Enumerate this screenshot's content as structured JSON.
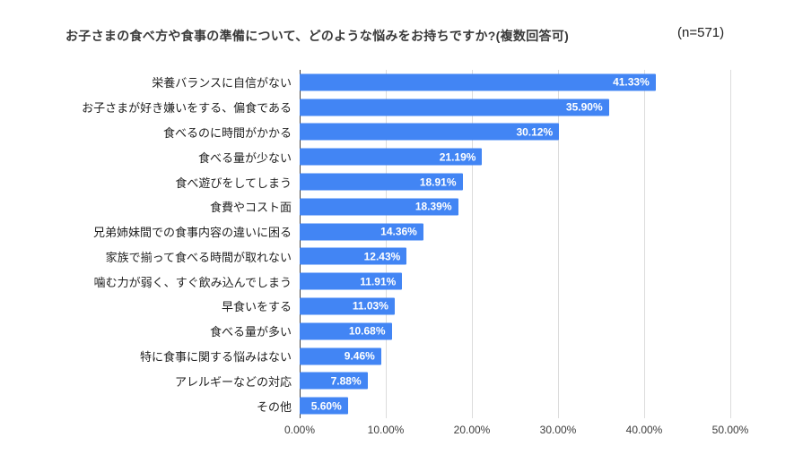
{
  "header": {
    "title": "お子さまの食べ方や食事の準備について、どのような悩みをお持ちですか?(複数回答可)",
    "sample_size_label": "(n=571)"
  },
  "chart_data": {
    "type": "bar",
    "orientation": "horizontal",
    "title": "お子さまの食べ方や食事の準備について、どのような悩みをお持ちですか?(複数回答可)",
    "annotation": "(n=571)",
    "sample_size": 571,
    "categories": [
      "栄養バランスに自信がない",
      "お子さまが好き嫌いをする、偏食である",
      "食べるのに時間がかかる",
      "食べる量が少ない",
      "食べ遊びをしてしまう",
      "食費やコスト面",
      "兄弟姉妹間での食事内容の違いに困る",
      "家族で揃って食べる時間が取れない",
      "噛む力が弱く、すぐ飲み込んでしまう",
      "早食いをする",
      "食べる量が多い",
      "特に食事に関する悩みはない",
      "アレルギーなどの対応",
      "その他"
    ],
    "values": [
      41.33,
      35.9,
      30.12,
      21.19,
      18.91,
      18.39,
      14.36,
      12.43,
      11.91,
      11.03,
      10.68,
      9.46,
      7.88,
      5.6
    ],
    "value_labels": [
      "41.33%",
      "35.90%",
      "30.12%",
      "21.19%",
      "18.91%",
      "18.39%",
      "14.36%",
      "12.43%",
      "11.91%",
      "11.03%",
      "10.68%",
      "9.46%",
      "7.88%",
      "5.60%"
    ],
    "x_ticks": [
      "0.00%",
      "10.00%",
      "20.00%",
      "30.00%",
      "40.00%",
      "50.00%"
    ],
    "xlim": [
      0,
      50
    ],
    "xlabel": "",
    "ylabel": "",
    "grid": true,
    "legend": "none",
    "bar_color": "#4285f4",
    "value_label_color": "#ffffff",
    "gridline_color": "#dcdcdc",
    "axis_line_color": "#424242"
  }
}
